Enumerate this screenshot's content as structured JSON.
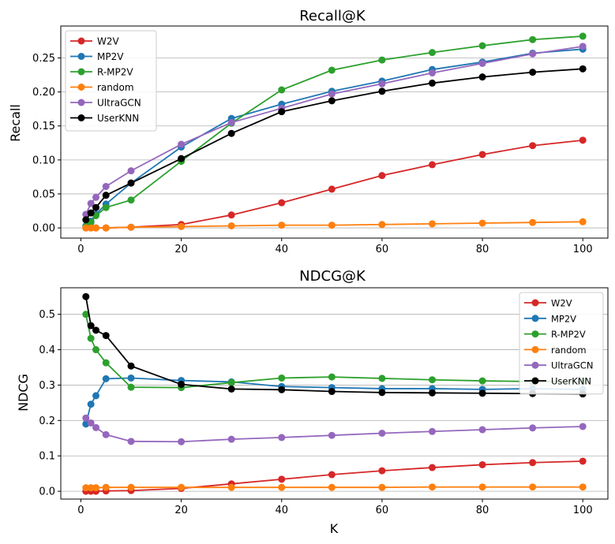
{
  "chart_data": [
    {
      "type": "line",
      "title": "Recall@K",
      "xlabel": "",
      "ylabel": "Recall",
      "xlim": [
        -4,
        105
      ],
      "ylim": [
        -0.015,
        0.297
      ],
      "xticks": [
        0,
        20,
        40,
        60,
        80,
        100
      ],
      "yticks": [
        0.0,
        0.05,
        0.1,
        0.15,
        0.2,
        0.25
      ],
      "ytick_labels": [
        "0.00",
        "0.05",
        "0.10",
        "0.15",
        "0.20",
        "0.25"
      ],
      "grid": "horizontal",
      "legend_position": "top-left",
      "x": [
        1,
        2,
        3,
        5,
        10,
        20,
        30,
        40,
        50,
        60,
        70,
        80,
        90,
        100
      ],
      "series": [
        {
          "name": "W2V",
          "color": "#d62728",
          "values": [
            0.0,
            0.0,
            0.0,
            0.0,
            0.001,
            0.005,
            0.019,
            0.037,
            0.057,
            0.077,
            0.093,
            0.108,
            0.121,
            0.129
          ]
        },
        {
          "name": "MP2V",
          "color": "#1f77b4",
          "values": [
            0.003,
            0.01,
            0.02,
            0.035,
            0.066,
            0.119,
            0.161,
            0.182,
            0.201,
            0.216,
            0.233,
            0.244,
            0.257,
            0.263
          ]
        },
        {
          "name": "R-MP2V",
          "color": "#2ca02c",
          "values": [
            0.002,
            0.008,
            0.018,
            0.03,
            0.041,
            0.098,
            0.154,
            0.203,
            0.232,
            0.247,
            0.258,
            0.268,
            0.277,
            0.282
          ]
        },
        {
          "name": "random",
          "color": "#ff7f0e",
          "values": [
            0.0,
            0.0,
            0.0,
            0.0,
            0.001,
            0.002,
            0.003,
            0.004,
            0.004,
            0.005,
            0.006,
            0.007,
            0.008,
            0.009
          ]
        },
        {
          "name": "UltraGCN",
          "color": "#9467bd",
          "values": [
            0.02,
            0.036,
            0.045,
            0.061,
            0.084,
            0.123,
            0.155,
            0.176,
            0.197,
            0.212,
            0.228,
            0.242,
            0.256,
            0.267
          ]
        },
        {
          "name": "UserKNN",
          "color": "#000000",
          "values": [
            0.012,
            0.022,
            0.03,
            0.048,
            0.066,
            0.102,
            0.139,
            0.171,
            0.187,
            0.201,
            0.213,
            0.222,
            0.229,
            0.234
          ]
        }
      ]
    },
    {
      "type": "line",
      "title": "NDCG@K",
      "xlabel": "K",
      "ylabel": "NDCG",
      "xlim": [
        -4,
        105
      ],
      "ylim": [
        -0.022,
        0.575
      ],
      "xticks": [
        0,
        20,
        40,
        60,
        80,
        100
      ],
      "yticks": [
        0.0,
        0.1,
        0.2,
        0.3,
        0.4,
        0.5
      ],
      "ytick_labels": [
        "0.0",
        "0.1",
        "0.2",
        "0.3",
        "0.4",
        "0.5"
      ],
      "grid": "horizontal",
      "legend_position": "top-right",
      "x": [
        1,
        2,
        3,
        5,
        10,
        20,
        30,
        40,
        50,
        60,
        70,
        80,
        90,
        100
      ],
      "series": [
        {
          "name": "W2V",
          "color": "#d62728",
          "values": [
            0.0,
            0.0,
            0.0,
            0.001,
            0.002,
            0.008,
            0.021,
            0.034,
            0.047,
            0.058,
            0.067,
            0.075,
            0.081,
            0.085
          ]
        },
        {
          "name": "MP2V",
          "color": "#1f77b4",
          "values": [
            0.19,
            0.246,
            0.27,
            0.318,
            0.32,
            0.313,
            0.309,
            0.296,
            0.293,
            0.29,
            0.29,
            0.288,
            0.29,
            0.288
          ]
        },
        {
          "name": "R-MP2V",
          "color": "#2ca02c",
          "values": [
            0.5,
            0.432,
            0.4,
            0.363,
            0.294,
            0.293,
            0.307,
            0.32,
            0.323,
            0.319,
            0.315,
            0.312,
            0.31,
            0.31
          ]
        },
        {
          "name": "random",
          "color": "#ff7f0e",
          "values": [
            0.01,
            0.01,
            0.01,
            0.011,
            0.011,
            0.011,
            0.011,
            0.011,
            0.011,
            0.011,
            0.012,
            0.012,
            0.012,
            0.012
          ]
        },
        {
          "name": "UltraGCN",
          "color": "#9467bd",
          "values": [
            0.207,
            0.193,
            0.18,
            0.16,
            0.141,
            0.14,
            0.147,
            0.152,
            0.158,
            0.164,
            0.169,
            0.174,
            0.179,
            0.183
          ]
        },
        {
          "name": "UserKNN",
          "color": "#000000",
          "values": [
            0.55,
            0.468,
            0.455,
            0.44,
            0.354,
            0.302,
            0.289,
            0.287,
            0.282,
            0.279,
            0.278,
            0.277,
            0.276,
            0.275
          ]
        }
      ]
    }
  ]
}
